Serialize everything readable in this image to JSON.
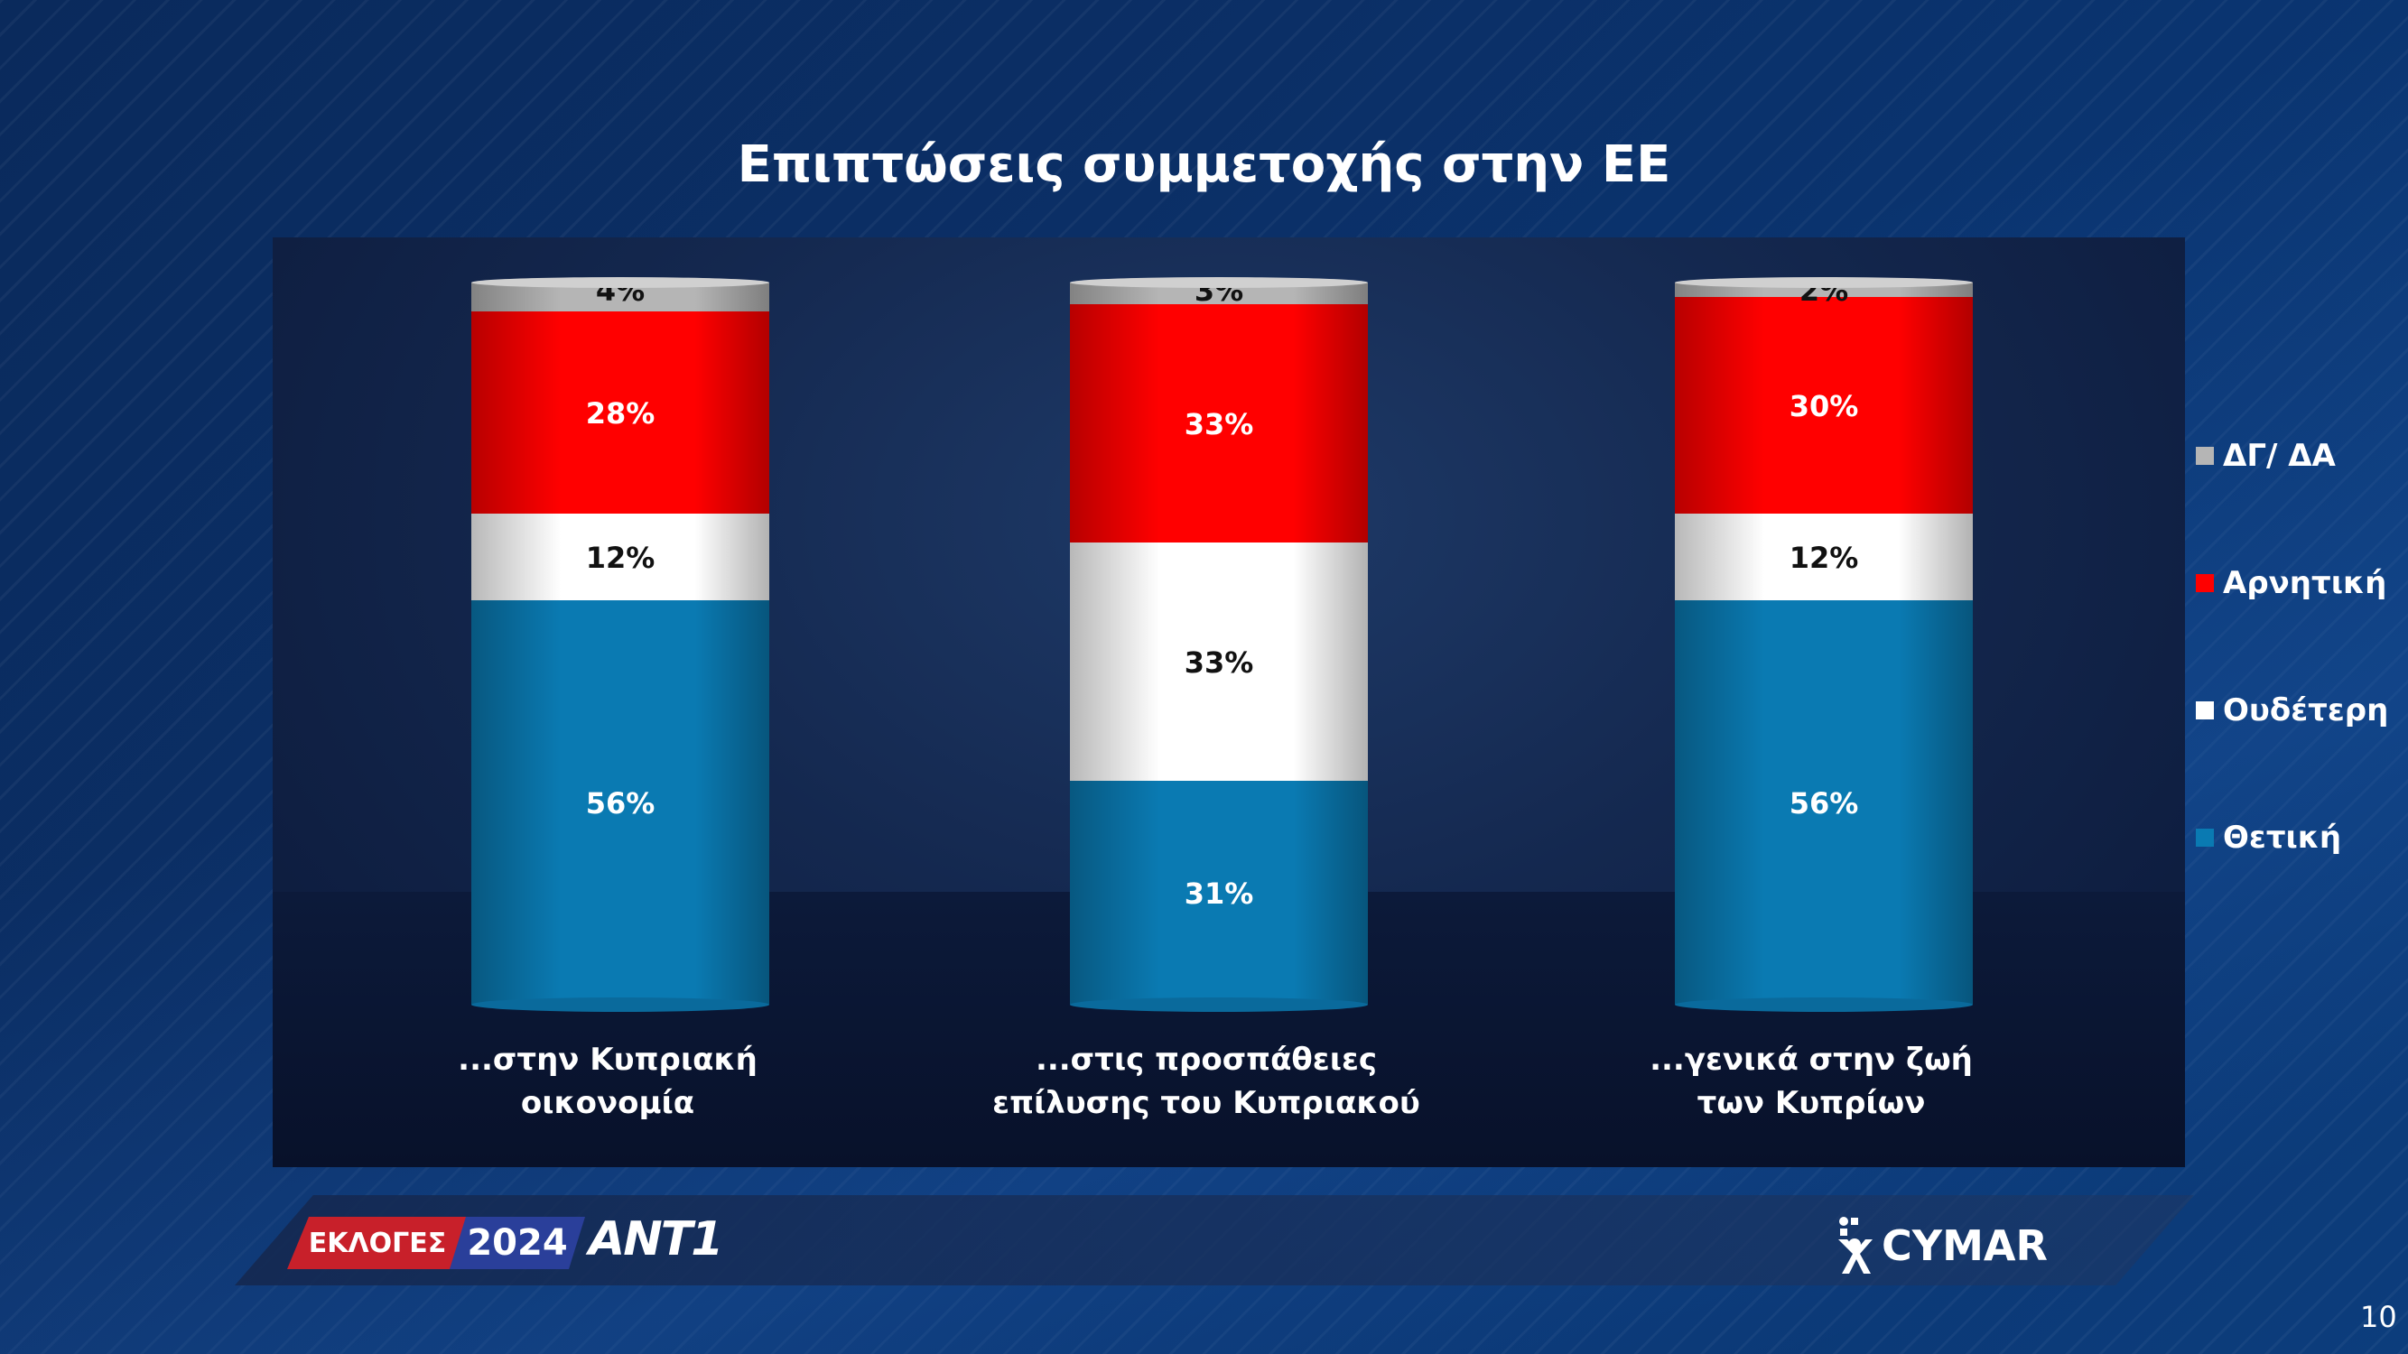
{
  "title": "Επιπτώσεις συμμετοχής στην ΕΕ",
  "colors": {
    "negative": "#ff0000",
    "neutral": "#ffffff",
    "positive": "#0a7ab2",
    "dk": "#b5b5b5"
  },
  "chart_data": {
    "type": "bar",
    "stacked": true,
    "categories": [
      "...στην Κυπριακή οικονομία",
      "...στις προσπάθειες επίλυσης του Κυπριακού",
      "...γενικά στην ζωή των Κυπρίων"
    ],
    "category_lines": [
      [
        "...στην Κυπριακή",
        "οικονομία"
      ],
      [
        "...στις προσπάθειες",
        "επίλυσης του Κυπριακού"
      ],
      [
        "...γενικά στην ζωή",
        "των Κυπρίων"
      ]
    ],
    "series": [
      {
        "name": "Θετική",
        "values": [
          56,
          31,
          56
        ],
        "labels": [
          "56%",
          "31%",
          "56%"
        ]
      },
      {
        "name": "Ουδέτερη",
        "values": [
          12,
          33,
          12
        ],
        "labels": [
          "12%",
          "33%",
          "12%"
        ]
      },
      {
        "name": "Αρνητική",
        "values": [
          28,
          33,
          30
        ],
        "labels": [
          "28%",
          "33%",
          "30%"
        ]
      },
      {
        "name": "ΔΓ/ ΔΑ",
        "values": [
          4,
          3,
          2
        ],
        "labels": [
          "4%",
          "3%",
          "2%"
        ]
      }
    ],
    "legend": [
      "ΔΓ/ ΔΑ",
      "Αρνητική",
      "Ουδέτερη",
      "Θετική"
    ],
    "legend_position": "right",
    "ylim": [
      0,
      100
    ],
    "grid": false
  },
  "footer": {
    "ekloges": "ΕΚΛΟΓΕΣ",
    "year": "2024",
    "channel": "ANT1",
    "pollster": "CYMAR"
  },
  "page_number": "10"
}
